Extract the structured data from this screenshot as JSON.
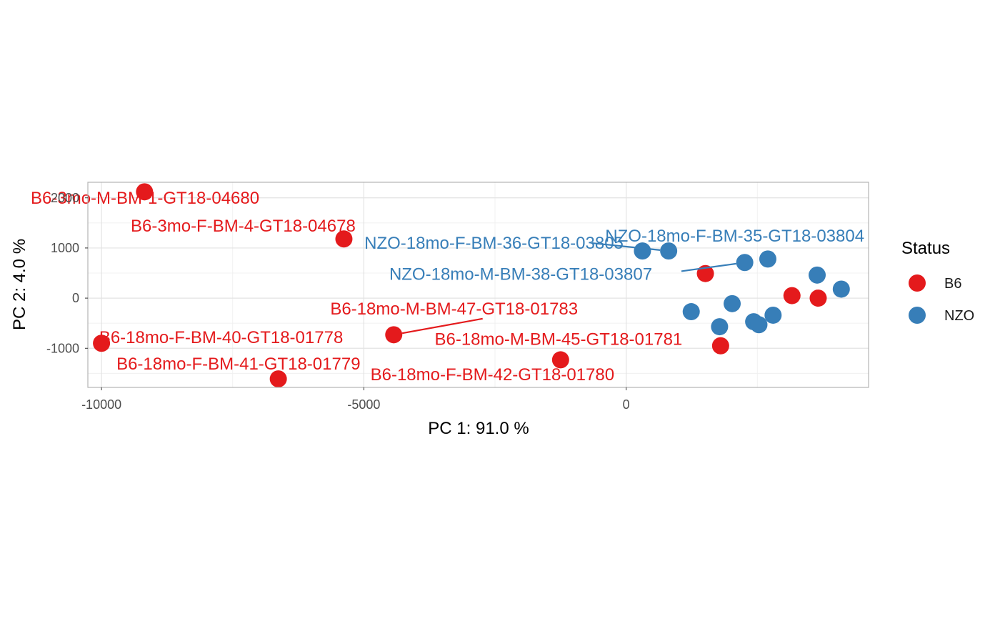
{
  "chart_data": {
    "type": "scatter",
    "xlabel": "PC 1: 91.0 %",
    "ylabel": "PC 2: 4.0 %",
    "xlim": [
      -10260,
      4620
    ],
    "ylim": [
      -1780,
      2310
    ],
    "xticks": [
      -10000,
      -5000,
      0
    ],
    "xtick_labels": [
      "-10000",
      "-5000",
      "0"
    ],
    "yticks": [
      -1000,
      0,
      1000,
      2000
    ],
    "ytick_labels": [
      "-1000",
      "0",
      "1000",
      "2000"
    ],
    "grid": true,
    "legend": {
      "title": "Status",
      "position": "right",
      "entries": [
        {
          "name": "B6",
          "color": "#E41A1C"
        },
        {
          "name": "NZO",
          "color": "#377EB8"
        }
      ]
    },
    "series": [
      {
        "name": "B6",
        "color": "#E41A1C",
        "points": [
          {
            "x": -9180,
            "y": 2120,
            "label": "B6-3mo-M-BM-1-GT18-04680"
          },
          {
            "x": -5380,
            "y": 1180,
            "label": "B6-3mo-F-BM-4-GT18-04678"
          },
          {
            "x": -4430,
            "y": -730,
            "label": "B6-18mo-M-BM-47-GT18-01783"
          },
          {
            "x": -10000,
            "y": -900,
            "label": "B6-18mo-F-BM-40-GT18-01778"
          },
          {
            "x": 1800,
            "y": -950,
            "label": "B6-18mo-M-BM-45-GT18-01781"
          },
          {
            "x": -6630,
            "y": -1610,
            "label": "B6-18mo-F-BM-41-GT18-01779"
          },
          {
            "x": -1250,
            "y": -1230,
            "label": "B6-18mo-F-BM-42-GT18-01780"
          },
          {
            "x": 1510,
            "y": 490
          },
          {
            "x": 3160,
            "y": 50
          },
          {
            "x": 3660,
            "y": 0
          }
        ]
      },
      {
        "name": "NZO",
        "color": "#377EB8",
        "points": [
          {
            "x": 310,
            "y": 940,
            "label": "NZO-18mo-F-BM-36-GT18-03805"
          },
          {
            "x": 810,
            "y": 940,
            "label": "NZO-18mo-F-BM-35-GT18-03804"
          },
          {
            "x": 2260,
            "y": 710,
            "label": "NZO-18mo-M-BM-38-GT18-03807"
          },
          {
            "x": 2700,
            "y": 780
          },
          {
            "x": 3640,
            "y": 460
          },
          {
            "x": 4100,
            "y": 180
          },
          {
            "x": 1240,
            "y": -270
          },
          {
            "x": 2020,
            "y": -110
          },
          {
            "x": 1780,
            "y": -570
          },
          {
            "x": 2430,
            "y": -470
          },
          {
            "x": 2530,
            "y": -530
          },
          {
            "x": 2800,
            "y": -340
          }
        ]
      }
    ],
    "annotations": [
      {
        "text": "B6-3mo-M-BM-1-GT18-04680",
        "series": "B6",
        "point_index": 0,
        "lx": -9170,
        "ly": 2000,
        "anchor": "middle"
      },
      {
        "text": "B6-3mo-F-BM-4-GT18-04678",
        "series": "B6",
        "point_index": 1,
        "lx": -7300,
        "ly": 1440,
        "anchor": "middle"
      },
      {
        "text": "B6-18mo-M-BM-47-GT18-01783",
        "series": "B6",
        "point_index": 2,
        "lx": -3280,
        "ly": -210,
        "anchor": "middle",
        "leader": true
      },
      {
        "text": "B6-18mo-F-BM-40-GT18-01778",
        "series": "B6",
        "point_index": 3,
        "lx": -7720,
        "ly": -780,
        "anchor": "middle"
      },
      {
        "text": "B6-18mo-M-BM-45-GT18-01781",
        "series": "B6",
        "point_index": 4,
        "lx": -1290,
        "ly": -820,
        "anchor": "middle"
      },
      {
        "text": "B6-18mo-F-BM-41-GT18-01779",
        "series": "B6",
        "point_index": 5,
        "lx": -7390,
        "ly": -1310,
        "anchor": "middle"
      },
      {
        "text": "B6-18mo-F-BM-42-GT18-01780",
        "series": "B6",
        "point_index": 6,
        "lx": -2550,
        "ly": -1520,
        "anchor": "middle"
      },
      {
        "text": "NZO-18mo-F-BM-36-GT18-03805",
        "series": "NZO",
        "point_index": 0,
        "lx": -2520,
        "ly": 1100,
        "anchor": "middle"
      },
      {
        "text": "NZO-18mo-F-BM-35-GT18-03804",
        "series": "NZO",
        "point_index": 1,
        "lx": 2070,
        "ly": 1240,
        "anchor": "middle",
        "leader": true
      },
      {
        "text": "NZO-18mo-M-BM-38-GT18-03807",
        "series": "NZO",
        "point_index": 2,
        "lx": -2010,
        "ly": 480,
        "anchor": "middle",
        "leader": true
      }
    ]
  }
}
